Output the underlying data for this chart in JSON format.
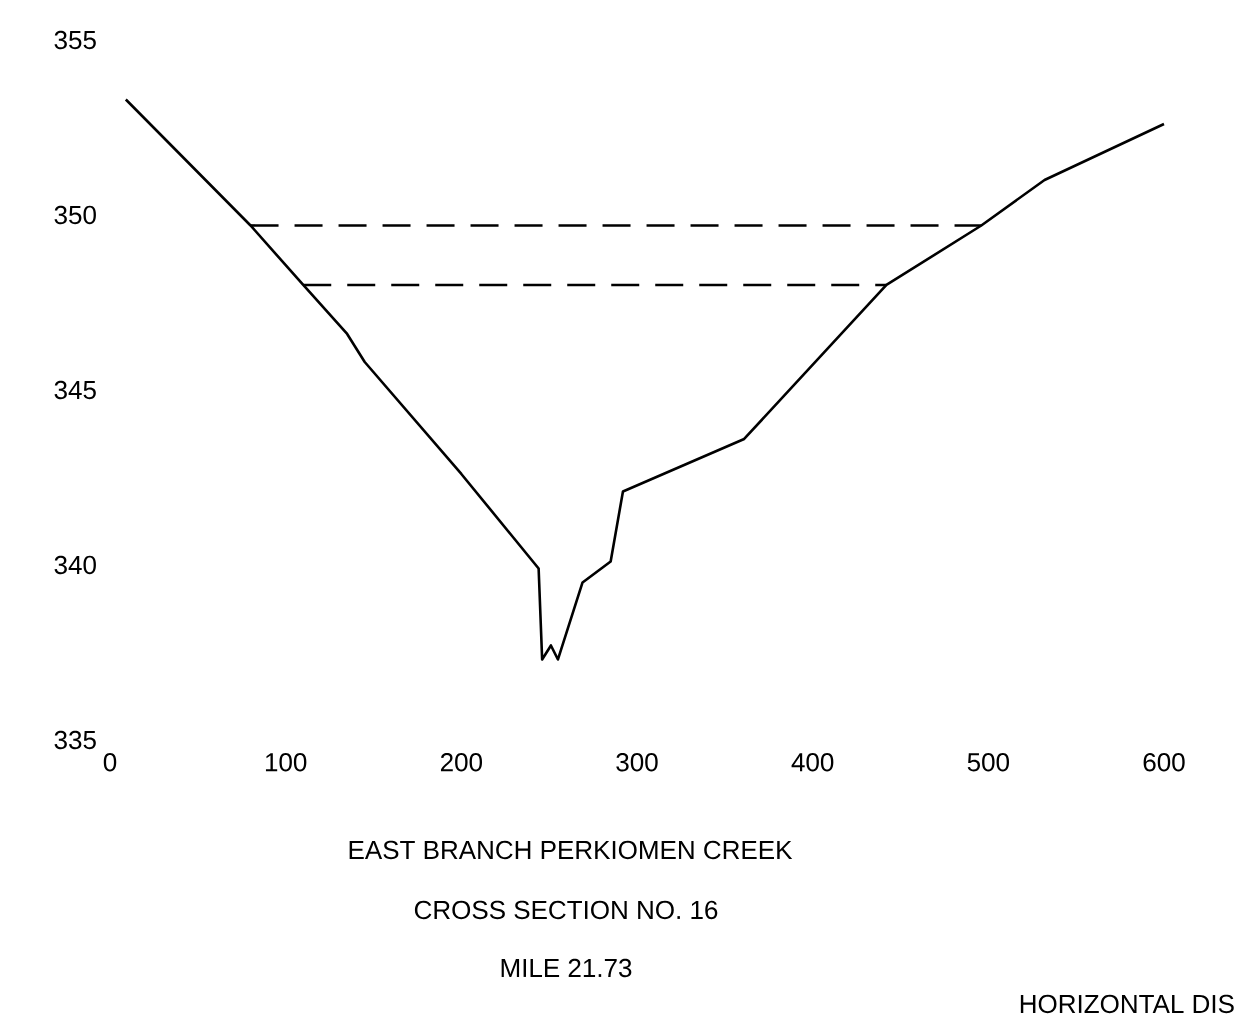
{
  "chart_data": {
    "type": "line",
    "title": "EAST BRANCH PERKIOMEN CREEK",
    "subtitle": "CROSS SECTION NO. 16",
    "annotations": [
      "MILE 21.73",
      "HORIZONTAL DIS"
    ],
    "xlim": [
      0,
      600
    ],
    "ylim": [
      335,
      355
    ],
    "xticks": [
      0,
      100,
      200,
      300,
      400,
      500,
      600
    ],
    "yticks": [
      335,
      340,
      345,
      350,
      355
    ],
    "series": [
      {
        "color": "#000000",
        "line_style": "solid",
        "x": [
          9,
          80,
          110,
          135,
          145,
          200,
          244,
          246,
          251,
          255,
          269,
          285,
          292,
          361,
          442,
          496,
          532,
          600
        ],
        "values": [
          353.3,
          349.7,
          348.0,
          346.6,
          345.8,
          342.6,
          339.9,
          337.3,
          337.7,
          337.3,
          339.5,
          340.1,
          342.1,
          343.6,
          348.0,
          349.7,
          351.0,
          352.6
        ]
      },
      {
        "color": "#000000",
        "line_style": "dashed",
        "x": [
          80,
          496
        ],
        "values": [
          349.7,
          349.7
        ]
      },
      {
        "color": "#000000",
        "line_style": "dashed",
        "x": [
          110,
          442
        ],
        "values": [
          348.0,
          348.0
        ]
      }
    ]
  }
}
